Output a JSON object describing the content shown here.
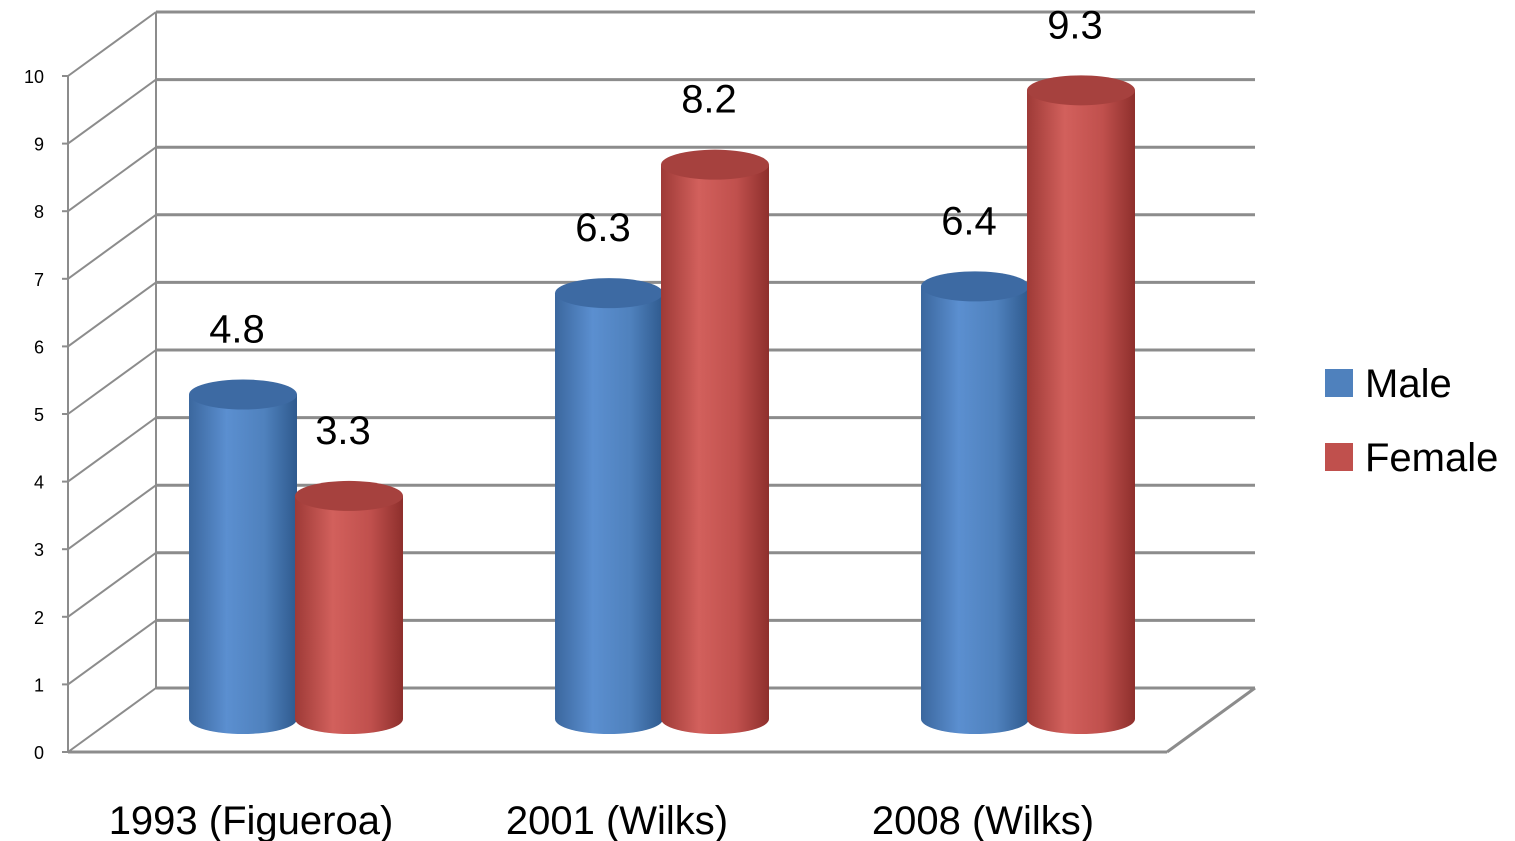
{
  "chart_data": {
    "type": "bar",
    "style": "3d-cylinder",
    "categories": [
      "1993 (Figueroa)",
      "2001 (Wilks)",
      "2008 (Wilks)"
    ],
    "series": [
      {
        "name": "Male",
        "values": [
          4.8,
          6.3,
          6.4
        ],
        "color": "#4F81BD"
      },
      {
        "name": "Female",
        "values": [
          3.3,
          8.2,
          9.3
        ],
        "color": "#C0504D"
      }
    ],
    "ylim": [
      0,
      10
    ],
    "yticks": [
      "0",
      "1",
      "2",
      "3",
      "4",
      "5",
      "6",
      "7",
      "8",
      "9",
      "10"
    ],
    "grid": true,
    "legend": "right",
    "data_labels": true
  }
}
